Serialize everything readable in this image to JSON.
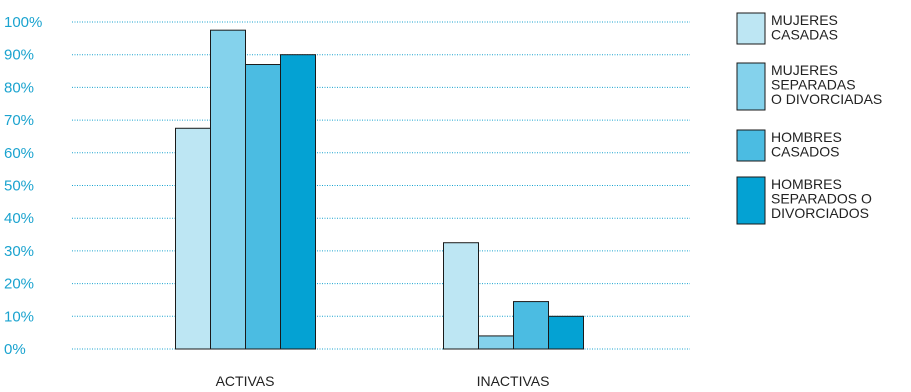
{
  "chart_data": {
    "type": "bar",
    "categories": [
      "ACTIVAS",
      "INACTIVAS"
    ],
    "series": [
      {
        "name": "MUJERES\nCASADAS",
        "values": [
          67.5,
          32.5
        ],
        "color": "#bde6f3"
      },
      {
        "name": "MUJERES\nSEPARADAS\nO DIVORCIADAS",
        "values": [
          97.5,
          4
        ],
        "color": "#84d2ec"
      },
      {
        "name": "HOMBRES\nCASADOS",
        "values": [
          87,
          14.5
        ],
        "color": "#4bbce2"
      },
      {
        "name": "HOMBRES\nSEPARADOS O\nDIVORCIADOS",
        "values": [
          90,
          10
        ],
        "color": "#04a2d3"
      }
    ],
    "yticks": [
      "0%",
      "10%",
      "20%",
      "30%",
      "40%",
      "50%",
      "60%",
      "70%",
      "80%",
      "90%",
      "100%"
    ],
    "ylim": [
      0,
      100
    ],
    "grid": true,
    "legend_position": "right"
  }
}
